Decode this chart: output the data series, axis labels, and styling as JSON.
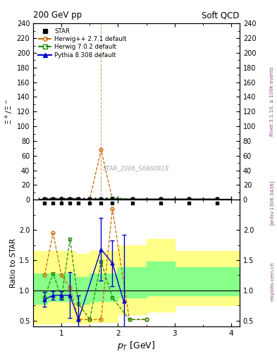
{
  "title_left": "200 GeV pp",
  "title_right": "Soft QCD",
  "ylabel_main": "$\\Xi^+/\\Xi^-$",
  "ylabel_ratio": "Ratio to STAR",
  "xlabel": "$p_T$ [GeV]",
  "watermark": "STAR_2006_S6860818",
  "color_herwig": "#cc6600",
  "color_herwig702": "#228800",
  "color_pythia": "#0000cc",
  "color_star": "#000000",
  "color_yellow": "#ffff88",
  "color_green": "#88ff88",
  "ylim_main": [
    0,
    240
  ],
  "ylim_ratio": [
    0.4,
    2.5
  ],
  "xlim": [
    0.5,
    4.15
  ],
  "yticks_main": [
    0,
    20,
    40,
    60,
    80,
    100,
    120,
    140,
    160,
    180,
    200,
    220,
    240
  ],
  "yticks_ratio": [
    0.5,
    1.0,
    1.5,
    2.0
  ],
  "xticks": [
    1,
    2,
    3,
    4
  ],
  "star_main_x": [
    0.7,
    0.85,
    1.0,
    1.15,
    1.3,
    1.5,
    1.7,
    1.9,
    2.25,
    2.75,
    3.25,
    3.75
  ],
  "star_main_y": [
    1.0,
    1.0,
    1.0,
    1.0,
    1.0,
    1.0,
    1.0,
    1.0,
    1.0,
    1.0,
    1.0,
    1.0
  ],
  "star_main_xerr": [
    0.1,
    0.1,
    0.1,
    0.1,
    0.1,
    0.1,
    0.1,
    0.1,
    0.25,
    0.25,
    0.25,
    0.25
  ],
  "star_main_yerr": [
    0.3,
    0.3,
    0.3,
    0.3,
    0.3,
    0.3,
    0.3,
    0.3,
    0.3,
    0.3,
    0.3,
    0.3
  ],
  "herwig_main_x": [
    0.7,
    0.85,
    1.0,
    1.15,
    1.3,
    1.5,
    1.7,
    1.9,
    2.25,
    2.75,
    3.25,
    3.75
  ],
  "herwig_main_y": [
    1.2,
    1.5,
    1.2,
    1.0,
    1.0,
    1.0,
    68.0,
    1.0,
    1.0,
    1.0,
    1.0,
    1.0
  ],
  "herwig702_main_x": [
    0.7,
    0.85,
    1.0,
    1.15,
    1.3,
    1.5,
    1.7,
    1.9,
    2.25,
    2.75,
    3.25,
    3.75
  ],
  "herwig702_main_y": [
    1.0,
    1.0,
    1.0,
    1.0,
    1.0,
    1.0,
    1.0,
    2.5,
    1.0,
    1.0,
    1.0,
    1.0
  ],
  "pythia_main_x": [
    0.7,
    0.85,
    1.0,
    1.15,
    1.3,
    1.5,
    1.7,
    1.9,
    2.25,
    2.75,
    3.25,
    3.75
  ],
  "pythia_main_y": [
    1.0,
    1.0,
    1.0,
    1.0,
    1.0,
    1.0,
    1.0,
    1.0,
    1.0,
    1.0,
    1.0,
    1.0
  ],
  "herwig_ratio_x": [
    0.7,
    0.85,
    1.0,
    1.15,
    1.3,
    1.5,
    1.7,
    1.9,
    2.2,
    2.5
  ],
  "herwig_ratio_y": [
    1.25,
    1.95,
    1.25,
    1.05,
    0.52,
    0.52,
    0.52,
    2.35,
    0.52,
    0.52
  ],
  "herwig702_ratio_x": [
    0.7,
    0.85,
    1.0,
    1.15,
    1.3,
    1.5,
    1.7,
    1.9,
    2.2,
    2.5
  ],
  "herwig702_ratio_y": [
    0.88,
    1.28,
    0.88,
    1.85,
    0.78,
    0.52,
    1.48,
    0.88,
    0.52,
    0.52
  ],
  "pythia_ratio_x": [
    0.7,
    0.85,
    1.0,
    1.15,
    1.3,
    1.7,
    1.9,
    2.1
  ],
  "pythia_ratio_y": [
    0.85,
    0.92,
    0.92,
    0.92,
    0.52,
    1.68,
    1.45,
    0.82
  ],
  "pythia_ratio_yerr": [
    0.12,
    0.07,
    0.07,
    0.38,
    0.4,
    0.52,
    0.38,
    1.1
  ],
  "band_edges": [
    0.5,
    0.75,
    1.0,
    1.25,
    1.5,
    1.75,
    2.0,
    2.5,
    3.0,
    3.5,
    4.15
  ],
  "band_y_lo": [
    0.45,
    0.45,
    0.47,
    0.45,
    0.48,
    0.48,
    0.6,
    0.65,
    0.75,
    0.75,
    0.75
  ],
  "band_y_hi": [
    1.65,
    1.65,
    1.65,
    1.6,
    1.65,
    1.65,
    1.75,
    1.85,
    1.65,
    1.65,
    1.65
  ],
  "band_g_lo": [
    0.78,
    0.82,
    0.82,
    0.78,
    0.82,
    0.82,
    0.88,
    0.92,
    0.92,
    0.92,
    0.92
  ],
  "band_g_hi": [
    1.28,
    1.28,
    1.28,
    1.22,
    1.28,
    1.28,
    1.38,
    1.48,
    1.38,
    1.38,
    1.38
  ]
}
